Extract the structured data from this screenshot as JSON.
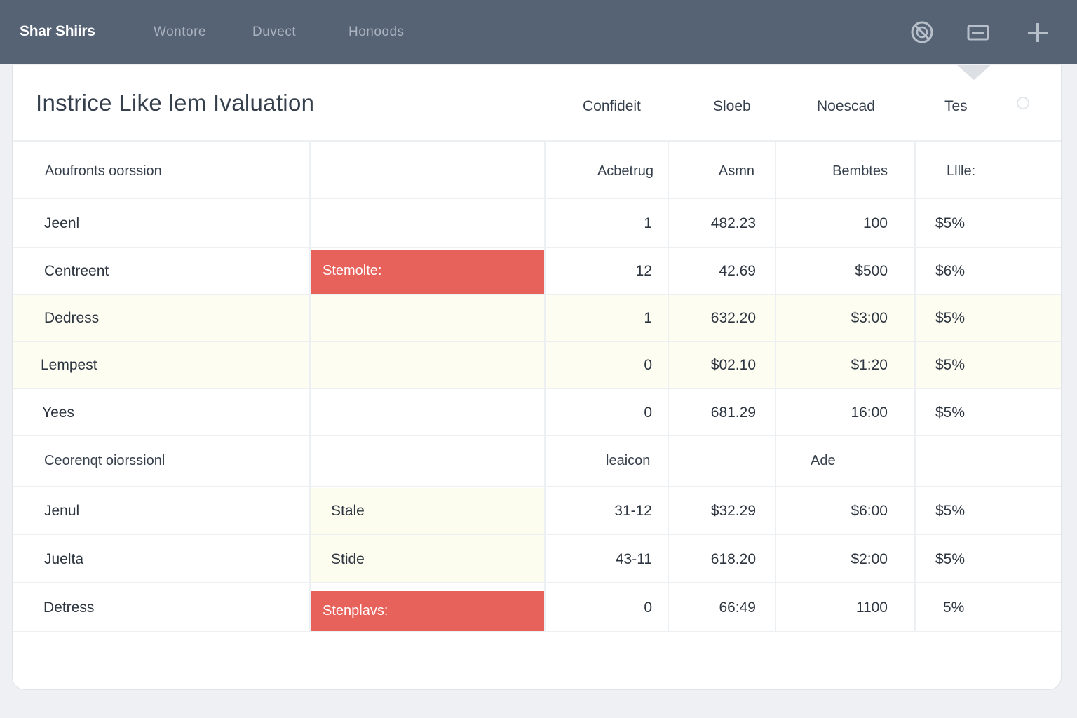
{
  "app": {
    "brand": "Shar Shiirs",
    "nav": [
      "Wontore",
      "Duvect",
      "Honoods"
    ]
  },
  "icons": {
    "toolbar": [
      "circle-slash-icon",
      "card-icon",
      "plus-icon"
    ]
  },
  "header": {
    "title": "Instrice Like lem Ivaluation",
    "links": [
      "Confideit",
      "Sloeb",
      "Noescad",
      "Tes"
    ]
  },
  "section1": {
    "name": "Aoufronts oorssion",
    "columns": [
      "Acbetrug",
      "Asmn",
      "Bembtes",
      "Lllle:"
    ],
    "rows": [
      {
        "name": "Jeenl",
        "tag": "",
        "c1": "1",
        "c2": "482.23",
        "c3": "100",
        "c4": "$5%"
      },
      {
        "name": "Centreent",
        "tag": "Stemolte:",
        "c1": "12",
        "c2": "42.69",
        "c3": "$500",
        "c4": "$6%"
      },
      {
        "name": "Dedress",
        "tag": "",
        "c1": "1",
        "c2": "632.20",
        "c3": "$3:00",
        "c4": "$5%"
      },
      {
        "name": "Lempest",
        "tag": "",
        "c1": "0",
        "c2": "$02.10",
        "c3": "$1:20",
        "c4": "$5%"
      },
      {
        "name": "Yees",
        "tag": "",
        "c1": "0",
        "c2": "681.29",
        "c3": "16:00",
        "c4": "$5%"
      }
    ]
  },
  "section2": {
    "name": "Ceorenqt oiorssionl",
    "columns": [
      "leaicon",
      "Ade"
    ],
    "rows": [
      {
        "name": "Jenul",
        "tag": "Stale",
        "c1": "31-12",
        "c2": "$32.29",
        "c3": "$6:00",
        "c4": "$5%"
      },
      {
        "name": "Juelta",
        "tag": "Stide",
        "c1": "43-11",
        "c2": "618.20",
        "c3": "$2:00",
        "c4": "$5%"
      },
      {
        "name": "Detress",
        "tag": "Stenplavs:",
        "c1": "0",
        "c2": "66:49",
        "c3": "1100",
        "c4": "5%"
      }
    ]
  },
  "colors": {
    "topbar": "#566375",
    "highlight_red": "#e8625c",
    "highlight_cream": "#fdfdf2"
  }
}
